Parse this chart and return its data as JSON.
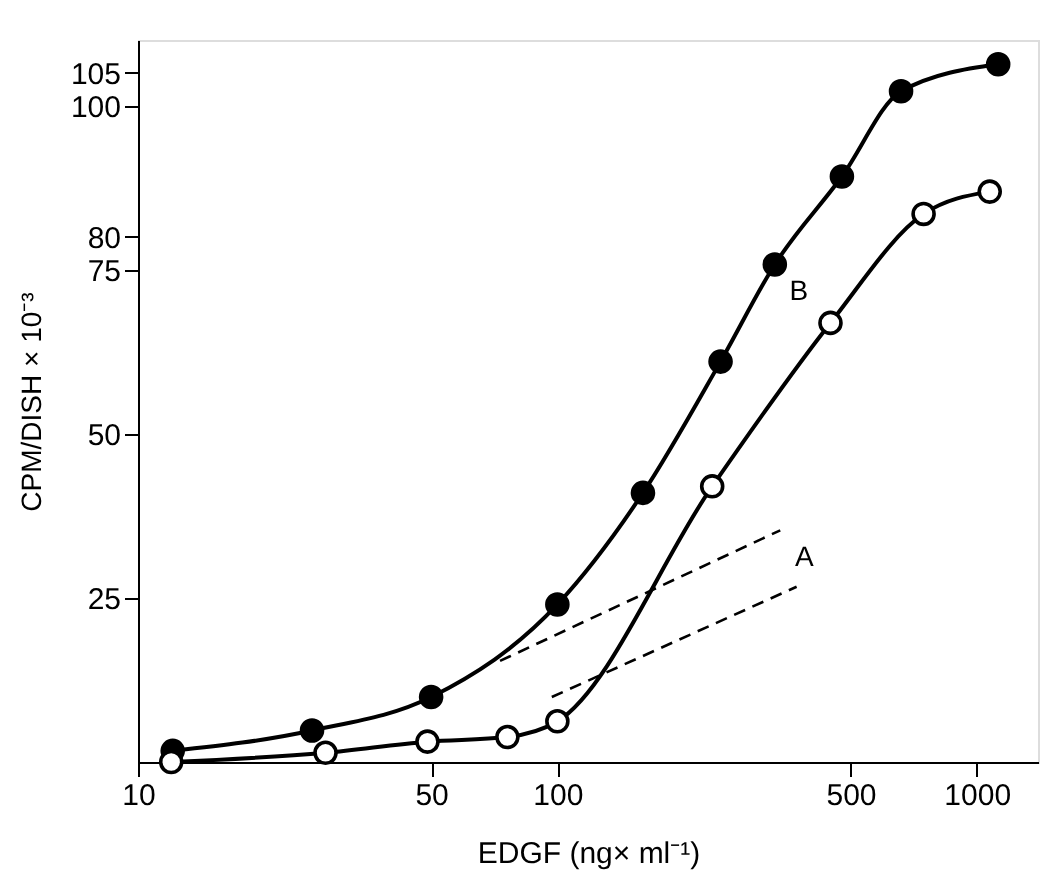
{
  "chart_data": {
    "type": "line",
    "xlabel": "EDGF (ng× ml⁻¹)",
    "ylabel": "CPM/DISH × 10⁻³",
    "log": "x",
    "xlim": [
      10,
      1400
    ],
    "xticks": [
      10,
      50,
      100,
      500,
      1000
    ],
    "ylim": [
      0,
      110
    ],
    "yticks": [
      25,
      50,
      75,
      80,
      100,
      105
    ],
    "grid": false,
    "marker": "circle",
    "line_style": "solid",
    "series": [
      {
        "color": "#000000",
        "x": [
          12.1,
          26,
          50,
          100,
          160,
          245,
          330,
          477,
          660,
          1125
        ],
        "values": [
          1.7,
          4.8,
          9.9,
          24,
          41,
          61,
          75.8,
          89.2,
          102.2,
          106.3
        ]
      },
      {
        "color": "#000000",
        "marker": "open circle",
        "x": [
          12,
          28,
          49,
          76,
          100,
          234,
          448,
          747,
          1074
        ],
        "values": [
          0,
          1.4,
          3.1,
          3.8,
          6.2,
          42,
          66.9,
          83.5,
          86.9
        ]
      },
      {
        "color": "#000000",
        "marker": "none",
        "line_style": "dashed",
        "x": [
          73,
          340
        ],
        "values": [
          15.4,
          35.3
        ]
      },
      {
        "color": "#000000",
        "marker": "none",
        "line_style": "dashed",
        "x": [
          97,
          372
        ],
        "values": [
          9.9,
          26.7
        ]
      }
    ],
    "annotations": [
      {
        "text": "A",
        "x": 340,
        "y": 35.3
      },
      {
        "text": "B",
        "x": 330,
        "y": 75.8
      }
    ]
  }
}
